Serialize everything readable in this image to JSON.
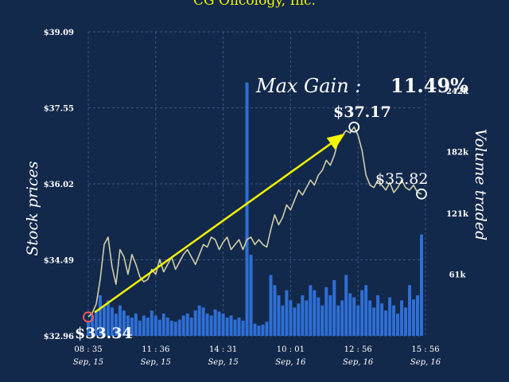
{
  "chart_data": {
    "type": "line",
    "title": "CG Oncology, Inc.",
    "ylabel": "Stock prices",
    "y2label": "Volume traded",
    "ylim": [
      32.96,
      39.09
    ],
    "y2lim": [
      0,
      300000
    ],
    "yticks": [
      "$32.96",
      "$34.49",
      "$36.02",
      "$37.55",
      "$39.09"
    ],
    "y2ticks": [
      {
        "value": 61000,
        "label": "61k"
      },
      {
        "value": 121000,
        "label": "121k"
      },
      {
        "value": 182000,
        "label": "182k"
      },
      {
        "value": 242000,
        "label": "242k"
      }
    ],
    "xticks": [
      {
        "index": 0,
        "time": "08 : 35",
        "date": "Sep, 15"
      },
      {
        "index": 17,
        "time": "11 : 36",
        "date": "Sep, 15"
      },
      {
        "index": 34,
        "time": "14 : 31",
        "date": "Sep, 15"
      },
      {
        "index": 51,
        "time": "10 : 01",
        "date": "Sep, 16"
      },
      {
        "index": 68,
        "time": "12 : 56",
        "date": "Sep, 16"
      },
      {
        "index": 85,
        "time": "15 : 56",
        "date": "Sep, 16"
      }
    ],
    "grid": true,
    "annotations": {
      "start_label": "$33.34",
      "max_label": "$37.17",
      "current_label": "$35.82",
      "gain_label": "Max Gain :",
      "gain_value": "11.49%"
    },
    "series": [
      {
        "kind": "line",
        "color": "#cfcfa8",
        "values": [
          33.34,
          33.42,
          33.6,
          34.1,
          34.8,
          34.95,
          34.35,
          34.0,
          34.7,
          34.55,
          34.2,
          34.6,
          34.4,
          34.15,
          34.05,
          34.1,
          34.3,
          34.2,
          34.5,
          34.25,
          34.4,
          34.55,
          34.3,
          34.45,
          34.6,
          34.7,
          34.55,
          34.4,
          34.6,
          34.8,
          34.75,
          34.95,
          34.9,
          34.7,
          34.85,
          34.95,
          34.7,
          34.8,
          34.9,
          34.7,
          34.9,
          34.95,
          34.8,
          34.9,
          34.8,
          34.75,
          35.1,
          35.4,
          35.2,
          35.35,
          35.6,
          35.5,
          35.7,
          35.9,
          35.8,
          35.95,
          36.1,
          36.0,
          36.2,
          36.3,
          36.5,
          36.4,
          36.6,
          36.9,
          37.0,
          37.1,
          37.05,
          37.17,
          37.0,
          36.7,
          36.2,
          36.0,
          35.95,
          36.1,
          36.0,
          35.9,
          36.05,
          35.85,
          35.95,
          36.1,
          35.95,
          35.9,
          36.0,
          35.85,
          35.82
        ]
      },
      {
        "kind": "bar",
        "color": "#2f6fd6",
        "values": [
          15000,
          20000,
          25000,
          40000,
          30000,
          35000,
          28000,
          22000,
          30000,
          25000,
          20000,
          18000,
          22000,
          15000,
          20000,
          18000,
          25000,
          20000,
          16000,
          22000,
          18000,
          15000,
          14000,
          16000,
          20000,
          22000,
          18000,
          25000,
          30000,
          28000,
          22000,
          20000,
          26000,
          24000,
          22000,
          18000,
          20000,
          16000,
          18000,
          15000,
          250000,
          80000,
          12000,
          10000,
          11000,
          14000,
          60000,
          50000,
          40000,
          30000,
          45000,
          35000,
          28000,
          32000,
          40000,
          35000,
          50000,
          45000,
          38000,
          30000,
          48000,
          40000,
          55000,
          30000,
          35000,
          60000,
          42000,
          38000,
          30000,
          45000,
          50000,
          35000,
          28000,
          40000,
          32000,
          25000,
          38000,
          30000,
          22000,
          35000,
          28000,
          50000,
          36000,
          40000,
          100000
        ]
      }
    ]
  }
}
